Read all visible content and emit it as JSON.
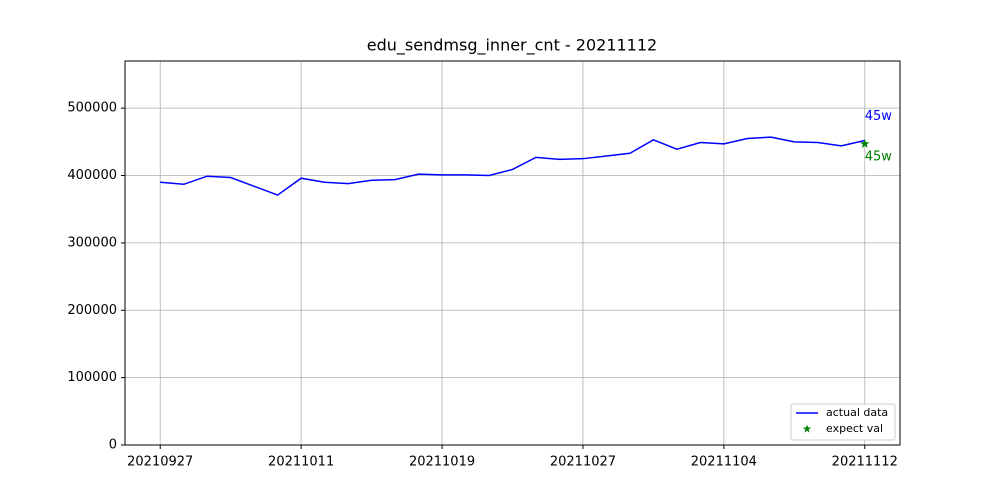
{
  "chart_data": {
    "type": "line",
    "title": "edu_sendmsg_inner_cnt - 20211112",
    "categories": [
      "20210927",
      null,
      null,
      null,
      null,
      null,
      "20211011",
      null,
      null,
      null,
      null,
      null,
      "20211019",
      null,
      null,
      null,
      null,
      null,
      "20211027",
      null,
      null,
      null,
      null,
      null,
      "20211104",
      null,
      null,
      null,
      null,
      null,
      "20211112"
    ],
    "series": [
      {
        "name": "actual data",
        "color": "#0000ff",
        "style": "line",
        "values": [
          390000,
          387000,
          399000,
          397000,
          384000,
          371000,
          396000,
          390000,
          388000,
          393000,
          394000,
          402000,
          401000,
          401000,
          400000,
          409000,
          427000,
          424000,
          425000,
          429000,
          433000,
          453000,
          439000,
          449000,
          447000,
          455000,
          457000,
          450000,
          449000,
          444000,
          452000
        ],
        "value_labels": [
          null,
          null,
          null,
          null,
          null,
          null,
          null,
          null,
          null,
          null,
          null,
          null,
          null,
          null,
          null,
          null,
          null,
          null,
          null,
          null,
          null,
          null,
          null,
          null,
          null,
          null,
          null,
          null,
          null,
          null,
          "45w"
        ]
      },
      {
        "name": "expect val",
        "color": "#008000",
        "style": "star",
        "values": [
          null,
          null,
          null,
          null,
          null,
          null,
          null,
          null,
          null,
          null,
          null,
          null,
          null,
          null,
          null,
          null,
          null,
          null,
          null,
          null,
          null,
          null,
          null,
          null,
          null,
          null,
          null,
          null,
          null,
          null,
          447000
        ],
        "value_labels": [
          null,
          null,
          null,
          null,
          null,
          null,
          null,
          null,
          null,
          null,
          null,
          null,
          null,
          null,
          null,
          null,
          null,
          null,
          null,
          null,
          null,
          null,
          null,
          null,
          null,
          null,
          null,
          null,
          null,
          null,
          "45w"
        ]
      }
    ],
    "xlim": [
      -1.5,
      31.5
    ],
    "ylim": [
      0,
      570000
    ],
    "yticks": [
      0,
      100000,
      200000,
      300000,
      400000,
      500000
    ],
    "grid": true,
    "legend": "lower right"
  }
}
